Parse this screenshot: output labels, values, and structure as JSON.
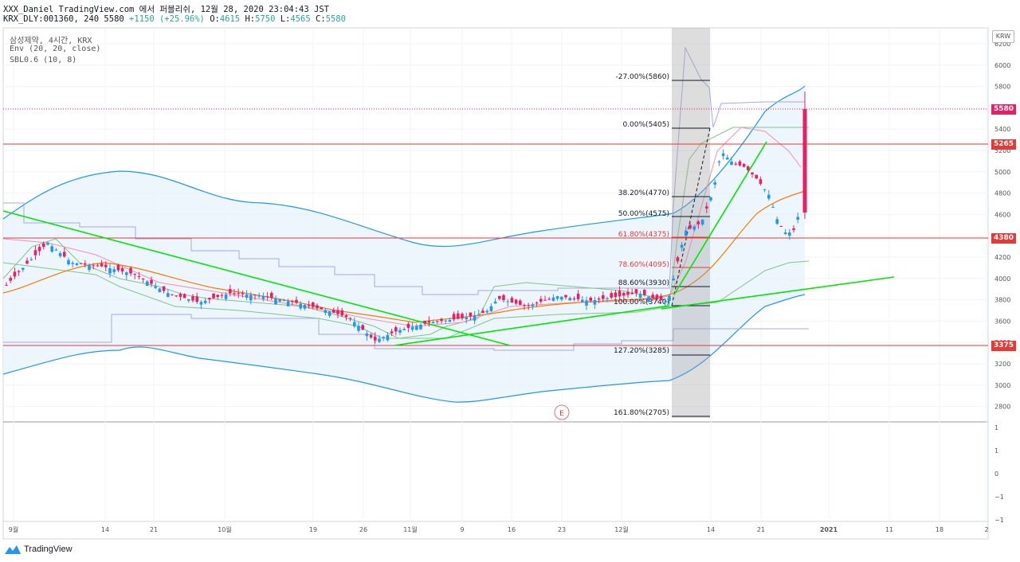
{
  "header": {
    "line1": "XXX_Daniel TradingView.com 에서 퍼블리쉬, 12월 28, 2020 23:04:43 JST",
    "line2_prefix": "KRX_DLY:001360, 240 5580 ",
    "change": "+1150 (+25.96%)",
    "o_label": " O:",
    "o": "4615",
    "h_label": " H:",
    "h": "5750",
    "l_label": " L:",
    "l": "4565",
    "c_label": " C:",
    "c": "5580"
  },
  "legend": {
    "symbol": "삼성제약, 4시간, KRX",
    "ind1": "Env (20, 20, close)",
    "ind2": "SBL0.6 (10, 8)"
  },
  "currency": "KRW",
  "brand": "TradingView",
  "earnings_marker": "E",
  "price_labels": {
    "p5580": "5580",
    "p5265": "5265",
    "p4380": "4380",
    "p3375": "3375"
  },
  "fib_labels": {
    "f1": "-27.00%(5860)",
    "f2": "0.00%(5405)",
    "f3": "38.20%(4770)",
    "f4": "50.00%(4575)",
    "f5": "61.80%(4375)",
    "f6": "78.60%(4095)",
    "f7": "88.60%(3930)",
    "f8": "100.00%(3740)",
    "f9": "127.20%(3285)",
    "f10": "161.80%(2705)"
  },
  "price_axis_ticks": [
    "6200",
    "6000",
    "5800",
    "5600",
    "5400",
    "5200",
    "5000",
    "4800",
    "4600",
    "4400",
    "4200",
    "4000",
    "3800",
    "3600",
    "3400",
    "3200",
    "3000",
    "2800"
  ],
  "osc_axis_ticks": [
    "1",
    "1",
    "0",
    "−1",
    "−1"
  ],
  "time_axis_ticks": [
    "9월",
    "14",
    "21",
    "10월",
    "19",
    "26",
    "11월",
    "9",
    "16",
    "23",
    "12월",
    "14",
    "21",
    "2021",
    "11",
    "18",
    "2"
  ],
  "colors": {
    "up": "#26a69a",
    "down": "#ef5350",
    "candle_up": "#2196f3",
    "candle_down": "#e91e63",
    "env_upper": "#2196f3",
    "env_fill": "#e3f2fd",
    "ma": "#f57c00",
    "trend": "#00e600",
    "hline": "#e53935",
    "fib_box": "#bdbdbd"
  },
  "chart_data": {
    "type": "line",
    "symbol": "KRX_DLY:001360",
    "interval": "240",
    "title": "삼성제약, 4시간, KRX",
    "ylim": [
      2620,
      6330
    ],
    "last_price": 5580,
    "horizontal_levels": [
      5265,
      4380,
      3375
    ],
    "fibonacci": [
      {
        "level": "-27.00%",
        "price": 5860
      },
      {
        "level": "0.00%",
        "price": 5405
      },
      {
        "level": "38.20%",
        "price": 4770
      },
      {
        "level": "50.00%",
        "price": 4575
      },
      {
        "level": "61.80%",
        "price": 4375
      },
      {
        "level": "78.60%",
        "price": 4095
      },
      {
        "level": "88.60%",
        "price": 3930
      },
      {
        "level": "100.00%",
        "price": 3740
      },
      {
        "level": "127.20%",
        "price": 3285
      },
      {
        "level": "161.80%",
        "price": 2705
      }
    ],
    "series": [
      {
        "name": "Env (20, 20, close)",
        "values": [
          4050,
          4400,
          4600,
          4800,
          5000,
          4950,
          4650,
          4400,
          4200,
          4050,
          4000,
          4050,
          4200,
          4300,
          4300,
          4350,
          4400,
          4600,
          4700,
          4800
        ]
      },
      {
        "name": "close",
        "values": [
          3920,
          4300,
          4100,
          4120,
          3900,
          3770,
          3800,
          3880,
          3800,
          3740,
          3480,
          3580,
          3620,
          3680,
          3780,
          3800,
          3780,
          4350,
          5000,
          5580
        ]
      }
    ]
  }
}
